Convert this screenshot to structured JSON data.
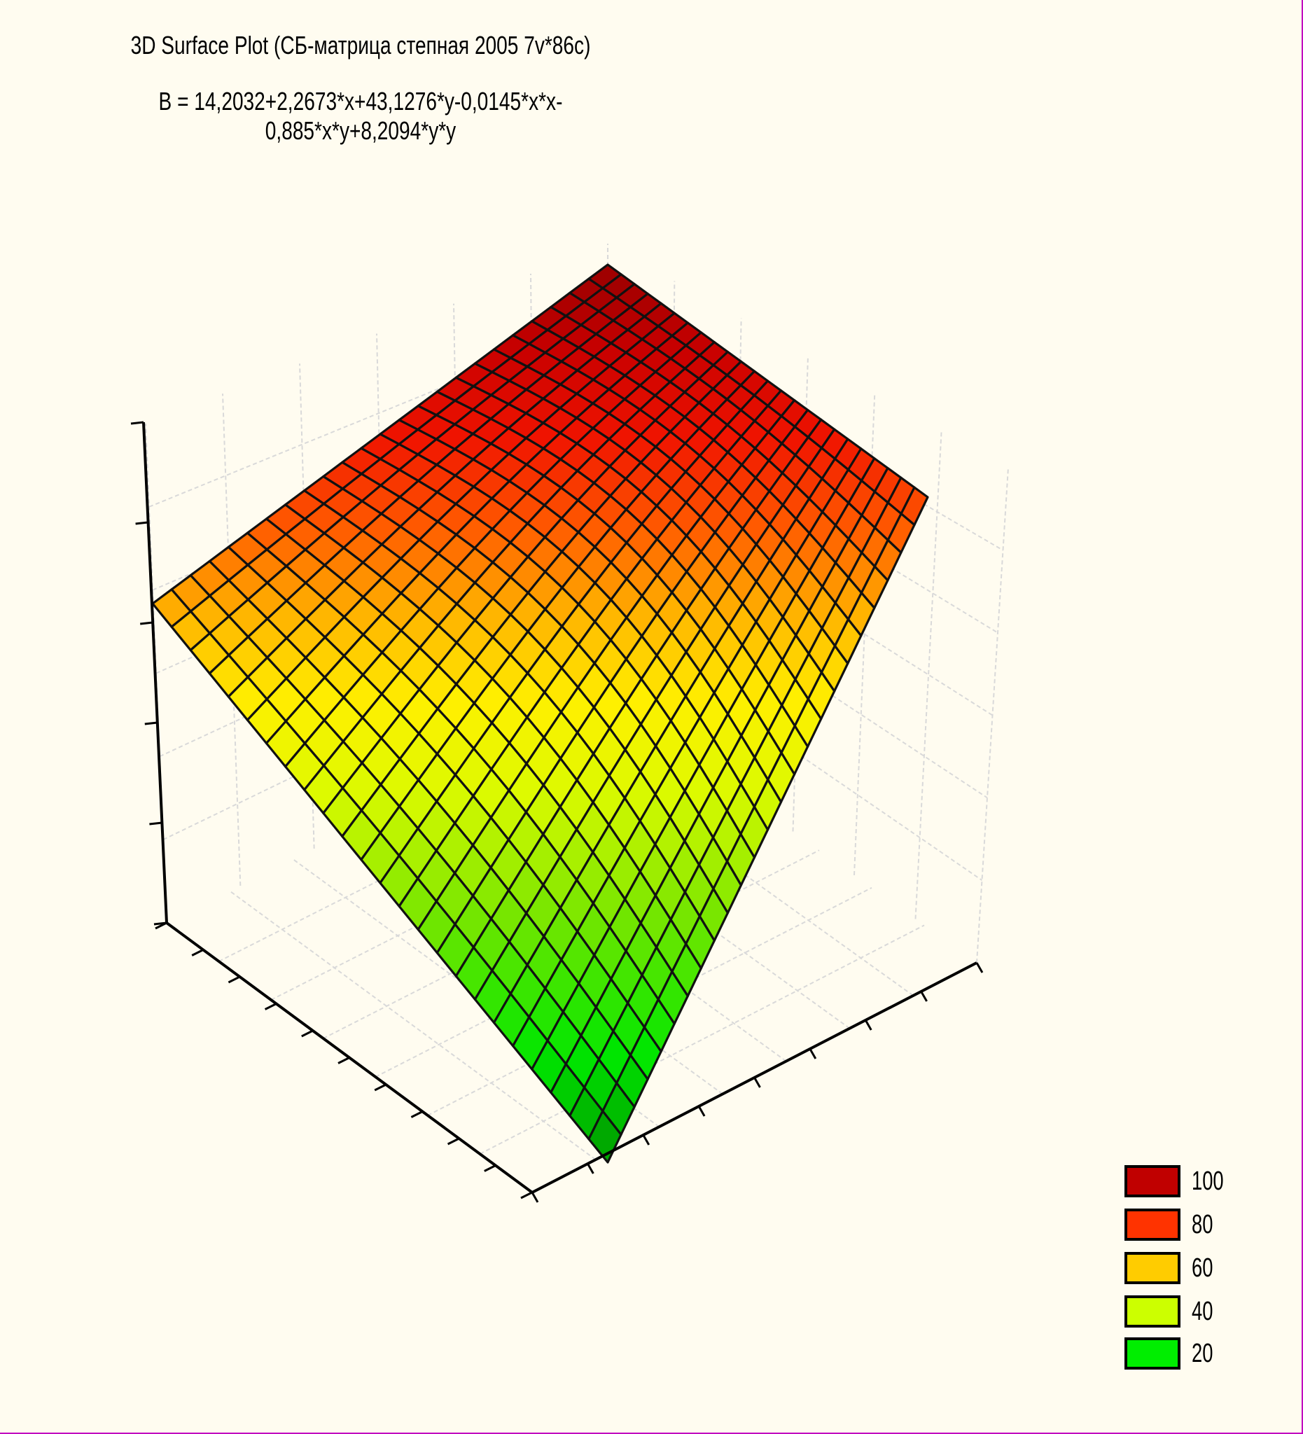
{
  "chart_data": {
    "type": "surface3d",
    "title": "3D Surface Plot (СБ-матрица степная 2005 7v*86c)",
    "subtitle": "B   = 14,2032+2,2673*x+43,1276*y-0,0145*x*x-0,885*x*y+8,2094*y*y",
    "formula_coefficients": {
      "const": 14.2032,
      "x": 2.2673,
      "y": 43.1276,
      "xx": -0.0145,
      "xy": -0.885,
      "yy": 8.2094
    },
    "grid": true,
    "legend_placement": "bottom-right",
    "legend": [
      {
        "label": "100",
        "color": "#c00000"
      },
      {
        "label": "80",
        "color": "#ff3300"
      },
      {
        "label": "60",
        "color": "#ffcc00"
      },
      {
        "label": "40",
        "color": "#ccff00"
      },
      {
        "label": "20",
        "color": "#00ee00"
      }
    ]
  }
}
